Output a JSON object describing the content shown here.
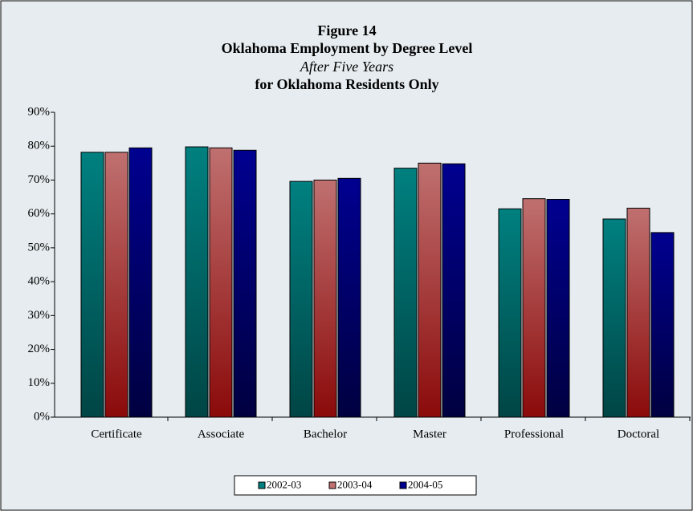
{
  "chart_data": {
    "type": "bar",
    "title": [
      "Figure 14",
      "Oklahoma Employment by Degree Level",
      "After Five Years",
      "for Oklahoma Residents Only"
    ],
    "categories": [
      "Certificate",
      "Associate",
      "Bachelor",
      "Master",
      "Professional",
      "Doctoral"
    ],
    "series": [
      {
        "name": "2002-03",
        "color": "#008080",
        "values": [
          78.2,
          79.8,
          69.6,
          73.5,
          61.5,
          58.5
        ]
      },
      {
        "name": "2003-04",
        "color": "#c07070",
        "values": [
          78.2,
          79.5,
          70.0,
          75.0,
          64.5,
          61.7
        ]
      },
      {
        "name": "2004-05",
        "color": "#000090",
        "values": [
          79.5,
          78.8,
          70.5,
          74.8,
          64.3,
          54.5
        ]
      }
    ],
    "ylim": [
      0,
      90
    ],
    "yticks": [
      {
        "value": 0,
        "label": "0%"
      },
      {
        "value": 10,
        "label": "10%"
      },
      {
        "value": 20,
        "label": "20%"
      },
      {
        "value": 30,
        "label": "30%"
      },
      {
        "value": 40,
        "label": "40%"
      },
      {
        "value": 50,
        "label": "50%"
      },
      {
        "value": 60,
        "label": "60%"
      },
      {
        "value": 70,
        "label": "70%"
      },
      {
        "value": 80,
        "label": "80%"
      },
      {
        "value": 90,
        "label": "90%"
      }
    ],
    "legend": "bottom"
  }
}
